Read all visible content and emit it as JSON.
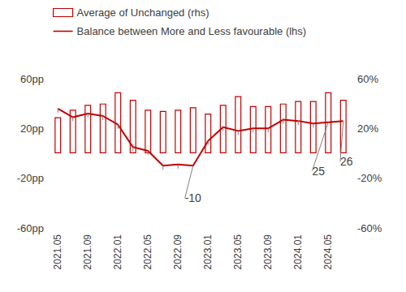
{
  "chart_data": {
    "type": "bar",
    "categories": [
      "2021.05",
      null,
      "2021.09",
      null,
      "2022.01",
      null,
      "2022.05",
      null,
      "2022.09",
      null,
      "2023.01",
      null,
      "2023.05",
      null,
      "2023.09",
      null,
      "2024.01",
      null,
      "2024.05",
      null
    ],
    "series": [
      {
        "name": "Average of Unchanged (rhs)",
        "type": "bar",
        "axis": "y2",
        "color": "#c00000",
        "values": [
          29,
          35,
          39,
          40,
          49,
          43,
          35,
          34,
          35,
          37,
          32,
          39,
          46,
          38,
          38,
          40,
          42,
          42,
          49,
          43
        ]
      },
      {
        "name": "Balance between More and Less favourable (lhs)",
        "type": "line",
        "color": "#c00000",
        "values": [
          36,
          29,
          32,
          30,
          23,
          5,
          2,
          -10,
          -9,
          -10,
          10,
          21,
          18,
          20,
          20,
          27,
          26,
          24,
          25,
          26
        ],
        "labelled_points": [
          9,
          18,
          19
        ]
      }
    ],
    "ylim": [
      -60,
      60
    ],
    "yticks": [
      {
        "value": -60,
        "label": "-60pp"
      },
      {
        "value": -20,
        "label": "-20pp"
      },
      {
        "value": 20,
        "label": "20pp"
      },
      {
        "value": 60,
        "label": "60pp"
      }
    ],
    "y2lim": [
      -60,
      60
    ],
    "y2ticks": [
      {
        "value": -60,
        "label": "-60%"
      },
      {
        "value": -20,
        "label": "-20%"
      },
      {
        "value": 20,
        "label": "20%"
      },
      {
        "value": 60,
        "label": "60%"
      }
    ],
    "grid": false,
    "legend": "top-left"
  }
}
